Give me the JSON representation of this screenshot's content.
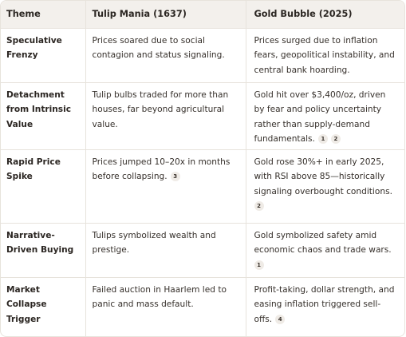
{
  "headers": [
    "Theme",
    "Tulip Mania (1637)",
    "Gold Bubble (2025)"
  ],
  "rows": [
    {
      "theme": "Speculative Frenzy",
      "tulip": "Prices soared due to social contagion and status signaling.",
      "tulip_cites": [],
      "gold": "Prices surged due to inflation fears, geopolitical instability, and central bank hoarding.",
      "gold_cites": []
    },
    {
      "theme": "Detachment from Intrinsic Value",
      "tulip": "Tulip bulbs traded for more than houses, far beyond agricultural value.",
      "tulip_cites": [],
      "gold": "Gold hit over $3,400/oz, driven by fear and policy uncertainty rather than supply-demand fundamentals.",
      "gold_cites": [
        "1",
        "2"
      ]
    },
    {
      "theme": "Rapid Price Spike",
      "tulip": "Prices jumped 10–20x in months before collapsing.",
      "tulip_cites": [
        "3"
      ],
      "gold": "Gold rose 30%+ in early 2025, with RSI above 85—historically signaling overbought conditions.",
      "gold_cites": [
        "2"
      ]
    },
    {
      "theme": "Narrative-Driven Buying",
      "tulip": "Tulips symbolized wealth and prestige.",
      "tulip_cites": [],
      "gold": "Gold symbolized safety amid economic chaos and trade wars.",
      "gold_cites": [
        "1"
      ]
    },
    {
      "theme": "Market Collapse Trigger",
      "tulip": "Failed auction in Haarlem led to panic and mass default.",
      "tulip_cites": [],
      "gold": "Profit-taking, dollar strength, and easing inflation triggered sell-offs.",
      "gold_cites": [
        "4"
      ]
    }
  ]
}
